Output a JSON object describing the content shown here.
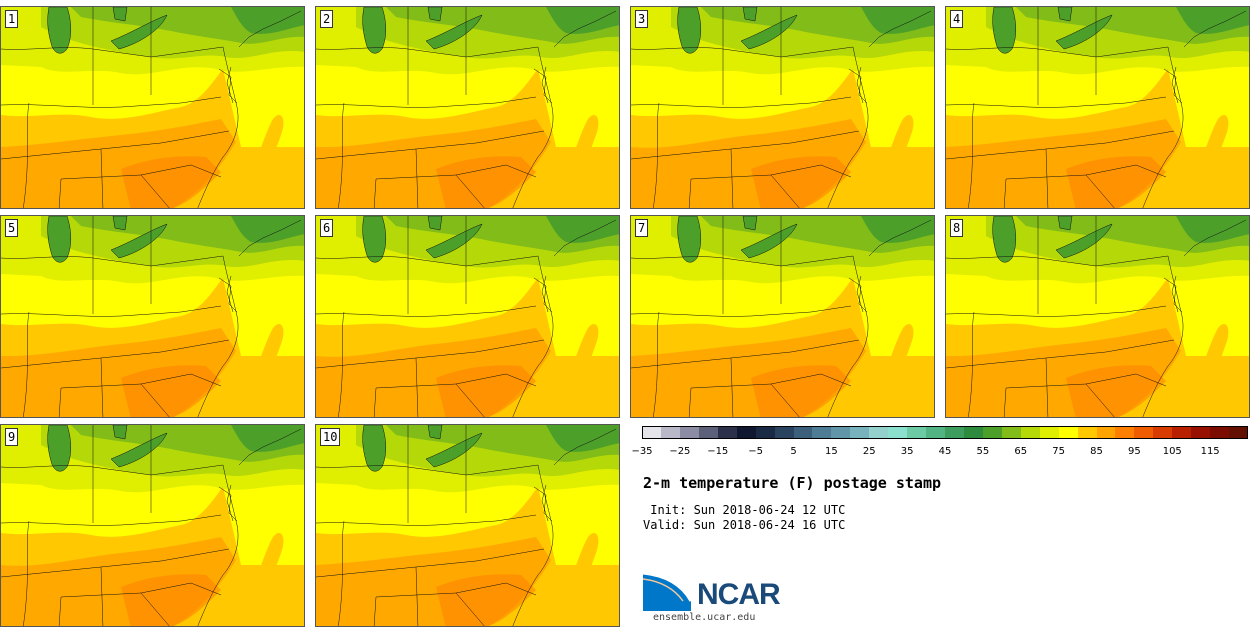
{
  "panels": [
    {
      "label": "1"
    },
    {
      "label": "2"
    },
    {
      "label": "3"
    },
    {
      "label": "4"
    },
    {
      "label": "5"
    },
    {
      "label": "6"
    },
    {
      "label": "7"
    },
    {
      "label": "8"
    },
    {
      "label": "9"
    },
    {
      "label": "10"
    }
  ],
  "legend": {
    "colors": [
      "#e4e4ea",
      "#b8b8c8",
      "#8c8ca4",
      "#5c6078",
      "#2c3048",
      "#101830",
      "#1a2a44",
      "#2a4460",
      "#3c607c",
      "#4e7c94",
      "#6096a8",
      "#78b2bc",
      "#94d0cc",
      "#8ae0cc",
      "#6ccaa4",
      "#52b482",
      "#3e9c5e",
      "#2e8a3c",
      "#4ca02a",
      "#82bc18",
      "#b4d808",
      "#e0ee00",
      "#ffff00",
      "#ffc800",
      "#ffa400",
      "#ff8000",
      "#f05c00",
      "#d83c00",
      "#b82000",
      "#981000",
      "#7c0c00",
      "#641000"
    ],
    "tick_labels": [
      "−35",
      "−25",
      "−15",
      "−5",
      "5",
      "15",
      "25",
      "35",
      "45",
      "55",
      "65",
      "75",
      "85",
      "95",
      "105",
      "115"
    ]
  },
  "map_colors": {
    "dark_green": "#2e8a3c",
    "green": "#4ca02a",
    "light_green": "#82bc18",
    "yellow_green": "#b4d808",
    "lime": "#e0ee00",
    "yellow": "#ffff00",
    "gold": "#ffc800",
    "orange": "#ffa400",
    "deep_orange": "#ff8000"
  },
  "title": "2-m temperature (F) postage stamp",
  "init_text": " Init: Sun 2018-06-24 12 UTC",
  "valid_text": "Valid: Sun 2018-06-24 16 UTC",
  "logo": {
    "name": "NCAR",
    "url": "ensemble.ucar.edu"
  }
}
